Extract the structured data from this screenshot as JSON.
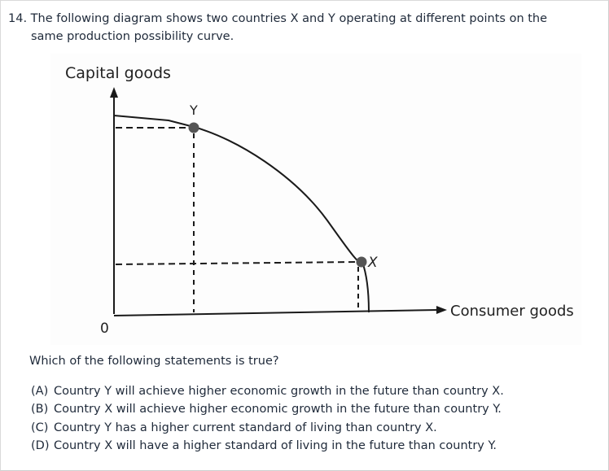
{
  "question": {
    "number": "14.",
    "text_line1": "The following diagram shows two countries X and Y operating at different points on the",
    "text_line2": "same production possibility curve.",
    "stem": "Which of the following statements is true?"
  },
  "diagram": {
    "y_axis_label": "Capital goods",
    "x_axis_label": "Consumer goods",
    "origin_label": "0",
    "point_y_label": "Y",
    "point_x_label": "X",
    "curve_color": "#1a1a1a",
    "point_color": "#555555"
  },
  "options": [
    {
      "letter": "(A)",
      "text": "Country Y will achieve higher economic growth in the future than country X."
    },
    {
      "letter": "(B)",
      "text": "Country X will achieve higher economic growth in the future than country Y."
    },
    {
      "letter": "(C)",
      "text": "Country Y has a higher current standard of living than country X."
    },
    {
      "letter": "(D)",
      "text": "Country X will have a higher standard of living in the future than country Y."
    }
  ]
}
